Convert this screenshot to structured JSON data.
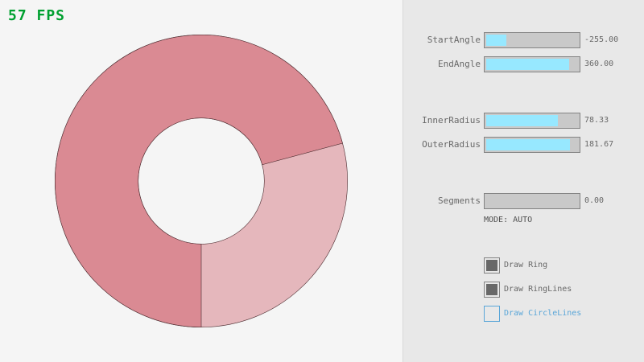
{
  "fps": "57 FPS",
  "ring": {
    "start_angle": -255,
    "end_angle": 360,
    "inner_radius": 78.33,
    "outer_radius": 181.67,
    "color_light": "#e5b7bc",
    "color_dark": "#da8a93",
    "outline": "#4a2a2e"
  },
  "controls": {
    "sliders": [
      {
        "label": "StartAngle",
        "value": "-255.00",
        "fraction": 0.217
      },
      {
        "label": "EndAngle",
        "value": "360.00",
        "fraction": 0.9
      },
      {
        "label": "InnerRadius",
        "value": "78.33",
        "fraction": 0.783
      },
      {
        "label": "OuterRadius",
        "value": "181.67",
        "fraction": 0.908
      },
      {
        "label": "Segments",
        "value": "0.00",
        "fraction": 0
      }
    ],
    "mode": "MODE: AUTO",
    "checkboxes": [
      {
        "label": "Draw Ring",
        "checked": true
      },
      {
        "label": "Draw RingLines",
        "checked": true
      },
      {
        "label": "Draw CircleLines",
        "checked": false
      }
    ],
    "accent": "#5aa6d8"
  }
}
